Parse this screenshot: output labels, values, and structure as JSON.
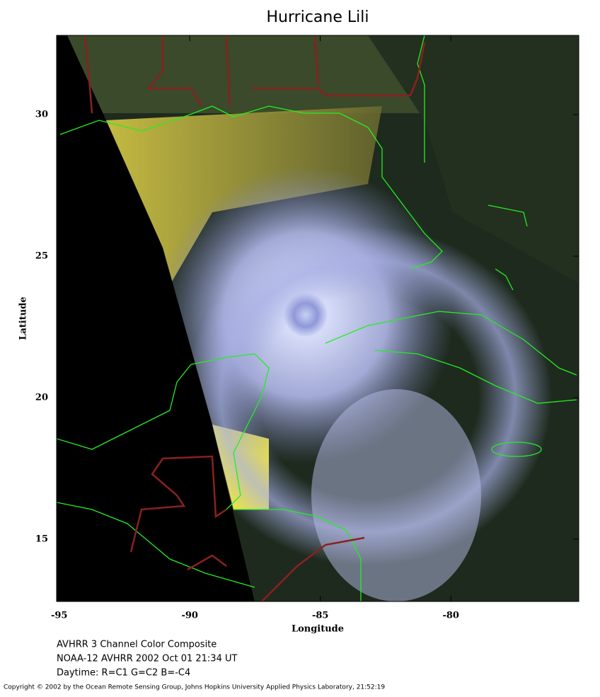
{
  "chart_data": {
    "type": "map",
    "title": "Hurricane Lili",
    "x_label": "Longitude",
    "y_label": "Latitude",
    "xlim": [
      -95.1,
      -75.1
    ],
    "ylim": [
      12.8,
      32.8
    ],
    "xticks": [
      -95,
      -90,
      -85,
      -80
    ],
    "yticks": [
      15,
      20,
      25,
      30
    ],
    "caption": [
      "AVHRR 3 Channel Color Composite",
      "NOAA-12 AVHRR 2002 Oct 01 21:34 UT",
      "Daytime: R=C1 G=C2 B=-C4"
    ],
    "copyright": "Copyright © 2002 by the Ocean Remote Sensing Group, Johns Hopkins University Applied Physics Laboratory, 21:52:19"
  }
}
